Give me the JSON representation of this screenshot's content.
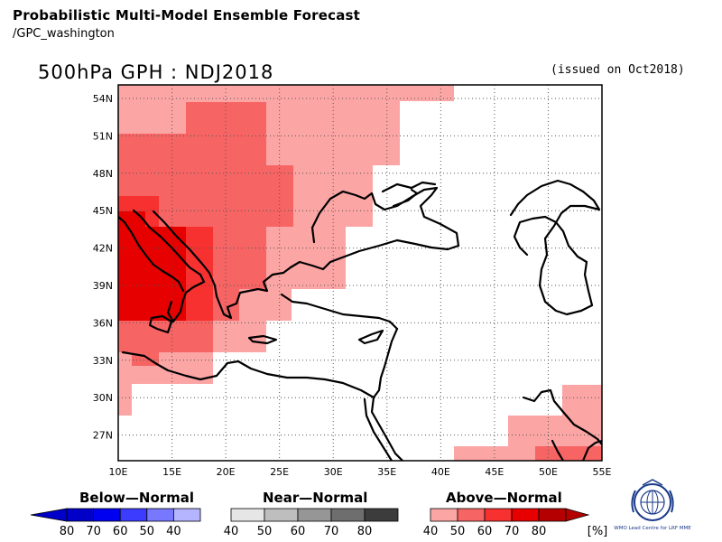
{
  "header": {
    "title": "Probabilistic Multi-Model Ensemble Forecast",
    "subtitle": "/GPC_washington",
    "map_title": "500hPa GPH : NDJ2018",
    "issued": "(issued on Oct2018)"
  },
  "map": {
    "lat_ticks": [
      "54N",
      "51N",
      "48N",
      "45N",
      "42N",
      "39N",
      "36N",
      "33N",
      "30N",
      "27N"
    ],
    "lon_ticks": [
      "10E",
      "15E",
      "20E",
      "25E",
      "30E",
      "35E",
      "40E",
      "45E",
      "50E",
      "55E"
    ],
    "lon_range": [
      10,
      55
    ],
    "lat_range": [
      25,
      55
    ],
    "grid": "dotted",
    "colors": {
      "above_40": "#fca5a5",
      "above_50": "#f76464",
      "above_60": "#f73030",
      "above_70": "#e60000",
      "coastline": "#000000"
    }
  },
  "legend": {
    "below": {
      "label": "Below—Normal",
      "ticks": [
        "80",
        "70",
        "60",
        "50",
        "40"
      ],
      "colors": [
        "#0000c8",
        "#0000f0",
        "#3c3cff",
        "#7878ff",
        "#b4b4ff"
      ]
    },
    "near": {
      "label": "Near—Normal",
      "ticks": [
        "40",
        "50",
        "60",
        "70",
        "80"
      ],
      "colors": [
        "#e6e6e6",
        "#bebebe",
        "#969696",
        "#6e6e6e",
        "#3c3c3c"
      ]
    },
    "above": {
      "label": "Above—Normal",
      "ticks": [
        "40",
        "50",
        "60",
        "70",
        "80"
      ],
      "colors": [
        "#fca5a5",
        "#f76464",
        "#f73030",
        "#e60000",
        "#b40000"
      ],
      "unit": "[%]"
    }
  },
  "logo": {
    "caption": "WMO Lead Centre for LRF MME"
  }
}
